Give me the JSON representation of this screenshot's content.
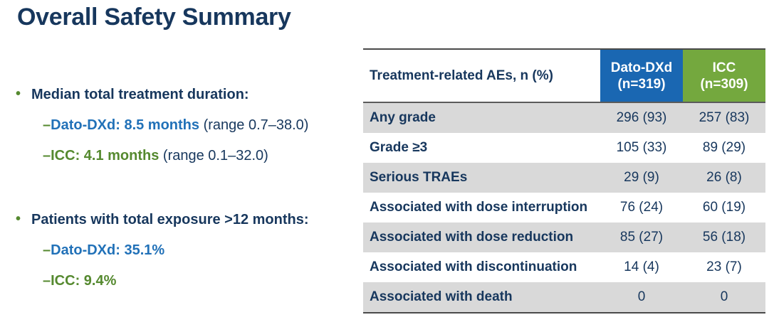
{
  "title": "Overall Safety Summary",
  "glyphs": {
    "bullet": "•",
    "dash": "–"
  },
  "colors": {
    "navy_text": "#17375D",
    "dato_blue_text": "#2171B8",
    "icc_green_text": "#55892F",
    "dato_blue_header": "#1A67B2",
    "icc_green_header": "#74A83E",
    "row_shade_gray": "#D9D9D9",
    "rule_dark": "#4A4A4A"
  },
  "bullets": [
    {
      "heading": "Median total treatment duration:",
      "items": [
        {
          "label": "Dato-DXd: 8.5 months",
          "suffix": " (range 0.7–38.0)"
        },
        {
          "label": "ICC: 4.1 months",
          "suffix": " (range 0.1–32.0)"
        }
      ]
    },
    {
      "heading": "Patients with total exposure >12 months:",
      "items": [
        {
          "label": "Dato-DXd: 35.1%",
          "suffix": ""
        },
        {
          "label": "ICC: 9.4%",
          "suffix": ""
        }
      ]
    }
  ],
  "table": {
    "header": {
      "label": "Treatment-related AEs, n (%)",
      "dato": "Dato-DXd\n(n=319)",
      "icc": "ICC\n(n=309)"
    },
    "rows": [
      {
        "label": "Any grade",
        "dato": "296 (93)",
        "icc": "257 (83)"
      },
      {
        "label": "Grade ≥3",
        "dato": "105 (33)",
        "icc": "89 (29)"
      },
      {
        "label": "Serious TRAEs",
        "dato": "29 (9)",
        "icc": "26 (8)"
      },
      {
        "label": "Associated with dose interruption",
        "dato": "76 (24)",
        "icc": "60 (19)"
      },
      {
        "label": "Associated with dose reduction",
        "dato": "85 (27)",
        "icc": "56 (18)"
      },
      {
        "label": "Associated with discontinuation",
        "dato": "14 (4)",
        "icc": "23 (7)"
      },
      {
        "label": "Associated with death",
        "dato": "0",
        "icc": "0"
      }
    ]
  }
}
